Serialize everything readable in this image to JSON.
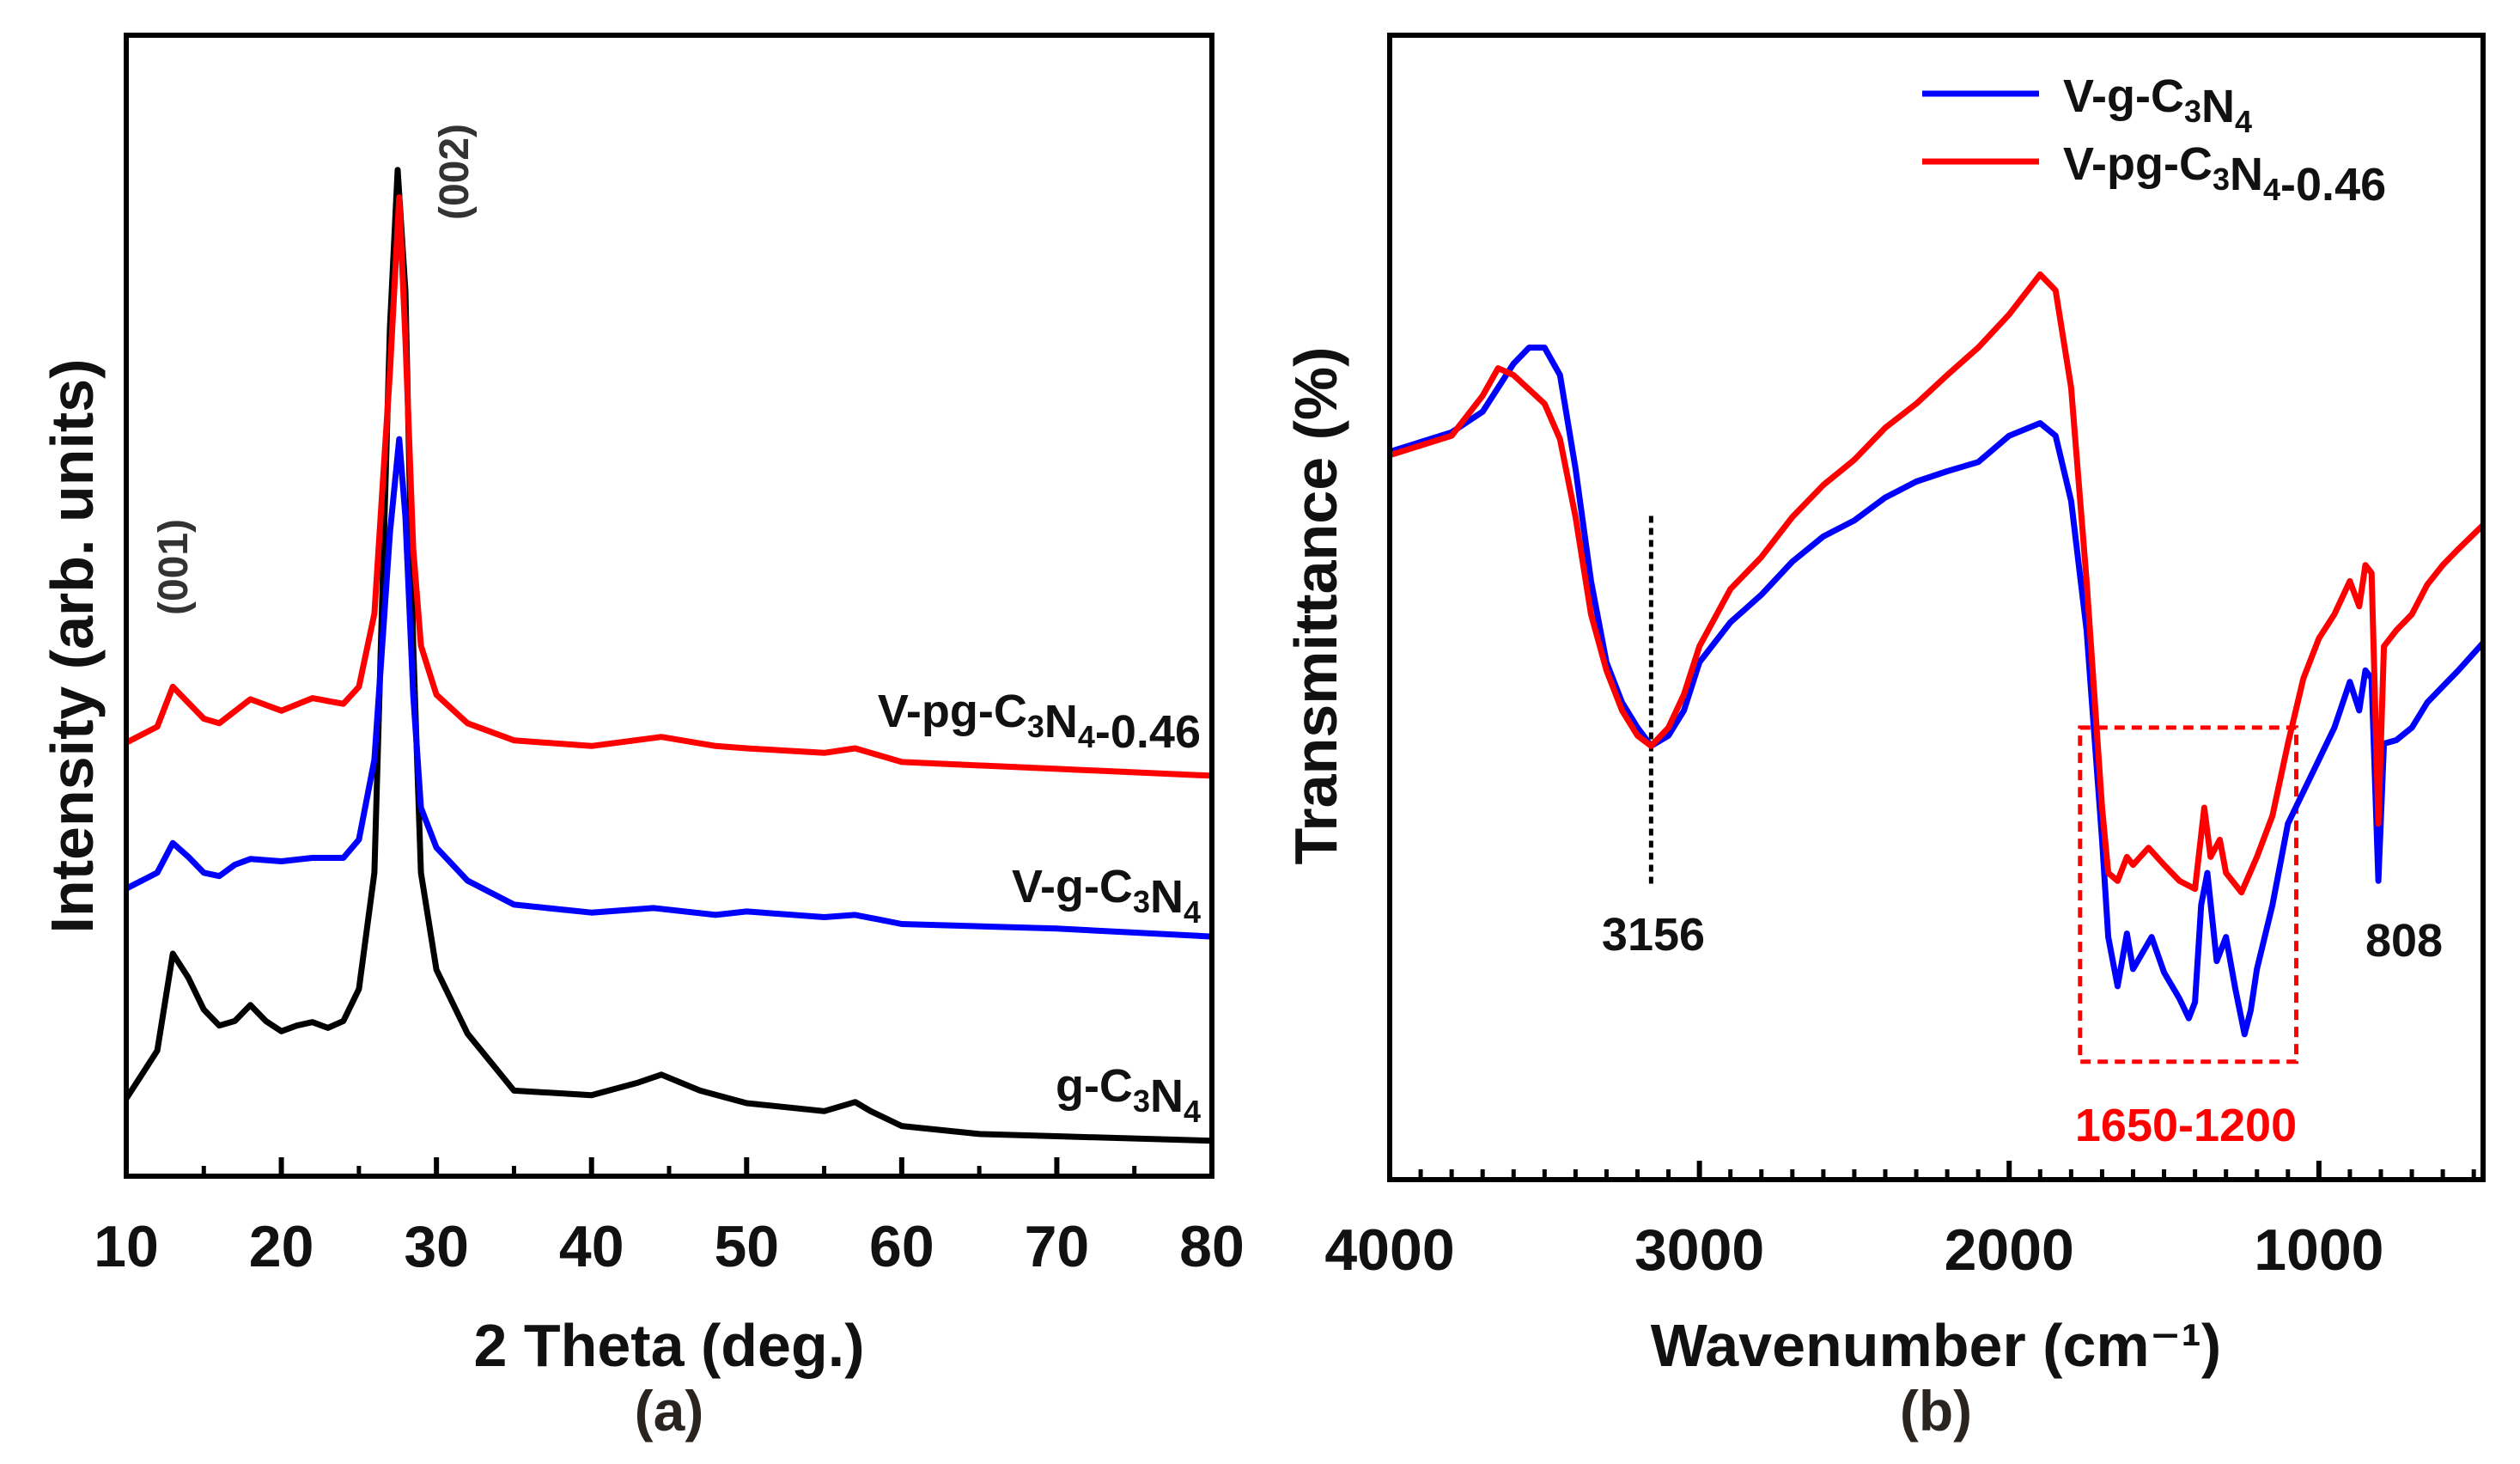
{
  "chart_data": [
    {
      "type": "line",
      "panel_label": "(a)",
      "xlabel": "2 Theta (deg.)",
      "ylabel": "Intensity (arb. units)",
      "xlim": [
        10,
        80
      ],
      "ylim": [
        0,
        100
      ],
      "xticks": [
        10,
        20,
        30,
        40,
        50,
        60,
        70,
        80
      ],
      "grid": false,
      "annotations": [
        {
          "text": "(001)",
          "x": 13,
          "y": 52
        },
        {
          "text": "(002)",
          "x": 30.5,
          "y": 88
        }
      ],
      "series": [
        {
          "name": "g-C3N4",
          "color": "#000000",
          "x": [
            10,
            11,
            12,
            13,
            14,
            15,
            16,
            17,
            18,
            19,
            20,
            21,
            22,
            23,
            24,
            25,
            26,
            27,
            27.5,
            28,
            28.5,
            29,
            30,
            32,
            35,
            40,
            43,
            44.5,
            47,
            50,
            55,
            57,
            58,
            60,
            65,
            70,
            80
          ],
          "y": [
            6.8,
            8.9,
            11.0,
            19.5,
            17.4,
            14.6,
            13.2,
            13.6,
            15.0,
            13.6,
            12.7,
            13.2,
            13.5,
            13.0,
            13.6,
            16.4,
            26.6,
            74.4,
            88.2,
            77.6,
            46.5,
            26.6,
            18.1,
            12.5,
            7.5,
            7.1,
            8.2,
            8.9,
            7.5,
            6.4,
            5.7,
            6.5,
            5.7,
            4.4,
            3.7,
            3.5,
            3.1
          ]
        },
        {
          "name": "V-g-C3N4",
          "color": "#0000ff",
          "x": [
            10,
            12,
            13,
            14,
            15,
            16,
            17,
            18,
            20,
            22,
            24,
            25,
            26,
            27,
            27.6,
            28,
            28.5,
            29,
            30,
            32,
            35,
            40,
            44,
            48,
            50,
            55,
            57,
            60,
            70,
            80
          ],
          "y": [
            25.2,
            26.6,
            29.2,
            28.0,
            26.6,
            26.3,
            27.3,
            27.8,
            27.6,
            27.9,
            27.9,
            29.5,
            36.5,
            56.4,
            64.6,
            57.8,
            42.2,
            32.3,
            28.8,
            25.9,
            23.8,
            23.1,
            23.5,
            22.9,
            23.2,
            22.7,
            22.9,
            22.1,
            21.7,
            21.0
          ]
        },
        {
          "name": "V-pg-C3N4-0.46",
          "color": "#ff0000",
          "x": [
            10,
            12,
            13,
            14,
            15,
            16,
            18,
            20,
            22,
            24,
            25,
            26,
            27,
            27.6,
            28,
            28.5,
            29,
            30,
            32,
            35,
            40,
            44.5,
            48,
            50,
            55,
            57,
            60,
            70,
            80
          ],
          "y": [
            38.0,
            39.4,
            42.9,
            41.5,
            40.1,
            39.7,
            41.8,
            40.8,
            41.9,
            41.4,
            42.9,
            49.3,
            70.5,
            85.8,
            73.4,
            55.0,
            46.5,
            42.2,
            39.7,
            38.2,
            37.7,
            38.5,
            37.7,
            37.5,
            37.1,
            37.5,
            36.3,
            35.7,
            35.1
          ]
        }
      ]
    },
    {
      "type": "line",
      "panel_label": "(b)",
      "xlabel": "Wavenumber (cm⁻¹)",
      "ylabel": "Transmittance (%)",
      "xlim": [
        4000,
        470
      ],
      "ylim": [
        0,
        100
      ],
      "xticks": [
        4000,
        3000,
        2000,
        1000
      ],
      "grid": false,
      "legend_position": "top-right",
      "annotations": [
        {
          "text": "3156",
          "x": 3156,
          "type": "dashed-vline"
        },
        {
          "text": "1650-1200",
          "x_range": [
            1771,
            1073
          ],
          "y_range": [
            10.3,
            39.5
          ],
          "type": "dashed-box",
          "color": "#ff0000"
        },
        {
          "text": "808",
          "x": 808
        }
      ],
      "series": [
        {
          "name": "V-g-C3N4",
          "color": "#0000ff",
          "x": [
            4000,
            3800,
            3700,
            3600,
            3550,
            3500,
            3450,
            3400,
            3350,
            3300,
            3250,
            3200,
            3156,
            3100,
            3050,
            3000,
            2900,
            2800,
            2700,
            2600,
            2500,
            2400,
            2300,
            2200,
            2100,
            2000,
            1900,
            1850,
            1800,
            1750,
            1700,
            1680,
            1650,
            1620,
            1600,
            1570,
            1540,
            1500,
            1450,
            1420,
            1400,
            1380,
            1360,
            1330,
            1300,
            1270,
            1240,
            1220,
            1200,
            1150,
            1100,
            1050,
            1000,
            950,
            900,
            870,
            850,
            830,
            808,
            790,
            750,
            700,
            650,
            600,
            550,
            470
          ],
          "y": [
            63.6,
            65.3,
            67.1,
            71.3,
            72.7,
            72.7,
            70.3,
            62.1,
            52.3,
            45.2,
            41.7,
            39.5,
            37.9,
            38.8,
            41.0,
            45.2,
            48.7,
            51.1,
            54.0,
            56.2,
            57.6,
            59.6,
            61.0,
            61.9,
            62.7,
            65.0,
            66.1,
            65.0,
            59.3,
            48.0,
            29.7,
            21.2,
            16.9,
            21.5,
            18.4,
            19.8,
            21.2,
            18.1,
            15.8,
            14.1,
            15.5,
            24.0,
            26.8,
            19.1,
            21.2,
            16.7,
            12.7,
            14.8,
            18.4,
            24.0,
            31.1,
            33.9,
            36.7,
            39.5,
            43.5,
            41.0,
            44.5,
            43.8,
            26.1,
            38.1,
            38.4,
            39.5,
            41.7,
            43.1,
            44.5,
            46.9
          ]
        },
        {
          "name": "V-pg-C3N4-0.46",
          "color": "#ff0000",
          "x": [
            4000,
            3800,
            3700,
            3650,
            3600,
            3500,
            3450,
            3400,
            3350,
            3300,
            3250,
            3200,
            3156,
            3100,
            3050,
            3000,
            2900,
            2800,
            2700,
            2600,
            2500,
            2400,
            2300,
            2200,
            2100,
            2000,
            1900,
            1850,
            1800,
            1750,
            1700,
            1680,
            1650,
            1620,
            1600,
            1550,
            1500,
            1450,
            1400,
            1370,
            1350,
            1320,
            1300,
            1250,
            1200,
            1150,
            1100,
            1050,
            1000,
            950,
            900,
            870,
            850,
            830,
            808,
            790,
            750,
            700,
            650,
            600,
            550,
            470
          ],
          "y": [
            63.3,
            65.0,
            68.5,
            70.9,
            70.3,
            67.8,
            64.7,
            57.9,
            49.4,
            44.5,
            41.0,
            38.8,
            37.9,
            39.5,
            42.4,
            46.6,
            51.6,
            54.4,
            57.9,
            60.7,
            62.9,
            65.7,
            67.8,
            70.3,
            72.7,
            75.6,
            79.1,
            77.7,
            69.2,
            52.3,
            32.5,
            26.8,
            26.1,
            28.2,
            27.5,
            29.0,
            27.5,
            26.1,
            25.4,
            32.5,
            28.2,
            29.7,
            26.8,
            25.1,
            28.2,
            31.8,
            38.1,
            43.8,
            47.3,
            49.4,
            52.3,
            50.1,
            53.7,
            53.0,
            31.1,
            46.6,
            48.0,
            49.4,
            52.0,
            53.7,
            55.1,
            57.2
          ]
        }
      ]
    }
  ]
}
